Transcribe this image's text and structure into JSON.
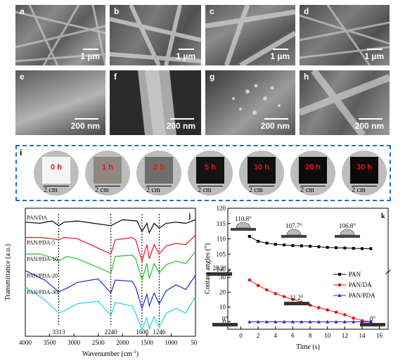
{
  "sem_panels": [
    {
      "label": "a",
      "scale": "1 µm"
    },
    {
      "label": "b",
      "scale": "1 µm"
    },
    {
      "label": "c",
      "scale": "1 µm"
    },
    {
      "label": "d",
      "scale": "1 µm"
    },
    {
      "label": "e",
      "scale": "200 nm"
    },
    {
      "label": "f",
      "scale": "200 nm"
    },
    {
      "label": "g",
      "scale": "200 nm"
    },
    {
      "label": "h",
      "scale": "200 nm"
    }
  ],
  "photo_panel": {
    "label": "i",
    "scale_text": "2 cm",
    "times": [
      "0 h",
      "1 h",
      "2 h",
      "5 h",
      "10 h",
      "20 h",
      "30 h"
    ],
    "sample_colors": [
      "#f4f4f4",
      "#8e8880",
      "#6f6e6a",
      "#141414",
      "#0f0f10",
      "#0c0c0d",
      "#0b0b0c"
    ],
    "time_color": "#e8121b"
  },
  "chart_data": [
    {
      "panel": "j",
      "type": "line",
      "xlabel": "Wavenumber (cm",
      "xlabel_sup": "-1",
      "xlabel_end": ")",
      "ylabel": "Transmittance (a.u.)",
      "x_ticks": [
        4000,
        3500,
        3000,
        2500,
        2000,
        1500,
        1000,
        500
      ],
      "xlim": [
        4000,
        500
      ],
      "series": [
        {
          "name": "PAN/DA",
          "color": "#000000",
          "values": [
            [
              4000,
              0.93
            ],
            [
              3700,
              0.92
            ],
            [
              3450,
              0.94
            ],
            [
              3313,
              0.9
            ],
            [
              3200,
              0.93
            ],
            [
              2930,
              0.94
            ],
            [
              2240,
              0.9
            ],
            [
              2000,
              0.95
            ],
            [
              1700,
              0.94
            ],
            [
              1600,
              0.85
            ],
            [
              1500,
              0.92
            ],
            [
              1450,
              0.84
            ],
            [
              1350,
              0.92
            ],
            [
              1246,
              0.88
            ],
            [
              1100,
              0.92
            ],
            [
              900,
              0.93
            ],
            [
              700,
              0.92
            ],
            [
              500,
              0.95
            ]
          ]
        },
        {
          "name": "PAN/PDA-5",
          "color": "#e8121b",
          "values": [
            [
              4000,
              0.8
            ],
            [
              3700,
              0.8
            ],
            [
              3450,
              0.79
            ],
            [
              3313,
              0.78
            ],
            [
              3200,
              0.8
            ],
            [
              2930,
              0.79
            ],
            [
              2240,
              0.66
            ],
            [
              2150,
              0.78
            ],
            [
              1800,
              0.8
            ],
            [
              1730,
              0.78
            ],
            [
              1600,
              0.6
            ],
            [
              1500,
              0.74
            ],
            [
              1450,
              0.62
            ],
            [
              1350,
              0.74
            ],
            [
              1246,
              0.66
            ],
            [
              1100,
              0.73
            ],
            [
              900,
              0.75
            ],
            [
              700,
              0.74
            ],
            [
              500,
              0.82
            ]
          ]
        },
        {
          "name": "PAN/PDA-10",
          "color": "#22c422",
          "values": [
            [
              4000,
              0.66
            ],
            [
              3700,
              0.66
            ],
            [
              3450,
              0.63
            ],
            [
              3313,
              0.6
            ],
            [
              3150,
              0.64
            ],
            [
              2930,
              0.62
            ],
            [
              2240,
              0.5
            ],
            [
              2150,
              0.64
            ],
            [
              1800,
              0.65
            ],
            [
              1730,
              0.62
            ],
            [
              1600,
              0.44
            ],
            [
              1500,
              0.58
            ],
            [
              1450,
              0.45
            ],
            [
              1350,
              0.58
            ],
            [
              1246,
              0.5
            ],
            [
              1100,
              0.57
            ],
            [
              900,
              0.6
            ],
            [
              700,
              0.58
            ],
            [
              500,
              0.68
            ]
          ]
        },
        {
          "name": "PAN/PDA-20",
          "color": "#1f25c9",
          "values": [
            [
              4000,
              0.52
            ],
            [
              3800,
              0.48
            ],
            [
              3600,
              0.44
            ],
            [
              3313,
              0.34
            ],
            [
              3100,
              0.38
            ],
            [
              2930,
              0.42
            ],
            [
              2500,
              0.45
            ],
            [
              2240,
              0.33
            ],
            [
              2150,
              0.44
            ],
            [
              1800,
              0.43
            ],
            [
              1730,
              0.38
            ],
            [
              1600,
              0.2
            ],
            [
              1500,
              0.32
            ],
            [
              1450,
              0.22
            ],
            [
              1350,
              0.33
            ],
            [
              1246,
              0.24
            ],
            [
              1100,
              0.35
            ],
            [
              900,
              0.4
            ],
            [
              700,
              0.36
            ],
            [
              500,
              0.48
            ]
          ]
        },
        {
          "name": "PAN/PDA-30",
          "color": "#18d6e0",
          "values": [
            [
              4000,
              0.38
            ],
            [
              3800,
              0.33
            ],
            [
              3600,
              0.27
            ],
            [
              3313,
              0.16
            ],
            [
              3100,
              0.2
            ],
            [
              2930,
              0.24
            ],
            [
              2500,
              0.26
            ],
            [
              2240,
              0.14
            ],
            [
              2150,
              0.25
            ],
            [
              1800,
              0.22
            ],
            [
              1730,
              0.16
            ],
            [
              1600,
              0.02
            ],
            [
              1500,
              0.12
            ],
            [
              1450,
              0.03
            ],
            [
              1350,
              0.13
            ],
            [
              1246,
              0.04
            ],
            [
              1100,
              0.16
            ],
            [
              900,
              0.2
            ],
            [
              700,
              0.16
            ],
            [
              500,
              0.3
            ]
          ]
        }
      ],
      "peak_labels": [
        {
          "x": 3313,
          "text": "3313"
        },
        {
          "x": 2240,
          "text": "2240"
        },
        {
          "x": 1600,
          "text": "1600"
        },
        {
          "x": 1246,
          "text": "1246"
        }
      ]
    },
    {
      "panel": "k",
      "type": "line",
      "xlabel": "Time (s)",
      "ylabel": "Contact angles (°)",
      "x_ticks": [
        0,
        2,
        4,
        6,
        8,
        10,
        12,
        14,
        16
      ],
      "xlim": [
        -1.5,
        17
      ],
      "y_ticks_upper": [
        100,
        105,
        110,
        115,
        120
      ],
      "y_ticks_lower": [
        0,
        10,
        20,
        30
      ],
      "ylim_upper": [
        100,
        120
      ],
      "ylim_lower": [
        -5,
        32
      ],
      "legend_position": "right",
      "series": [
        {
          "name": "PAN",
          "color": "#000000",
          "marker": "square",
          "values": [
            [
              1,
              110.8
            ],
            [
              2,
              109.2
            ],
            [
              3,
              108.6
            ],
            [
              4,
              108.2
            ],
            [
              5,
              108.0
            ],
            [
              6,
              107.8
            ],
            [
              7,
              107.7
            ],
            [
              8,
              107.6
            ],
            [
              9,
              107.4
            ],
            [
              10,
              107.2
            ],
            [
              11,
              107.1
            ],
            [
              12,
              107.0
            ],
            [
              13,
              106.9
            ],
            [
              14,
              106.8
            ],
            [
              15,
              106.8
            ]
          ]
        },
        {
          "name": "PAN/DA",
          "color": "#e8121b",
          "marker": "circle",
          "values": [
            [
              1,
              28.2
            ],
            [
              2,
              24.5
            ],
            [
              3,
              21.5
            ],
            [
              4,
              19.0
            ],
            [
              5,
              17.0
            ],
            [
              6,
              15.0
            ],
            [
              7,
              13.2
            ],
            [
              8,
              11.2
            ],
            [
              9,
              9.5
            ],
            [
              10,
              8.0
            ],
            [
              11,
              6.5
            ],
            [
              12,
              4.8
            ],
            [
              13,
              2.5
            ],
            [
              14,
              0.8
            ],
            [
              15,
              0
            ]
          ]
        },
        {
          "name": "PAN/PDA",
          "color": "#1f25c9",
          "marker": "triangle",
          "values": [
            [
              1,
              0
            ],
            [
              2,
              0
            ],
            [
              3,
              0
            ],
            [
              4,
              0
            ],
            [
              5,
              0
            ],
            [
              6,
              0
            ],
            [
              7,
              0
            ],
            [
              8,
              0
            ],
            [
              9,
              0
            ],
            [
              10,
              0
            ],
            [
              11,
              0
            ],
            [
              12,
              0
            ],
            [
              13,
              0
            ],
            [
              14,
              0
            ],
            [
              15,
              0
            ]
          ]
        }
      ],
      "angle_annotations": [
        "110.8°",
        "107.7°",
        "106.8°",
        "28.2°",
        "11.2°",
        "0°",
        "0°"
      ]
    }
  ]
}
